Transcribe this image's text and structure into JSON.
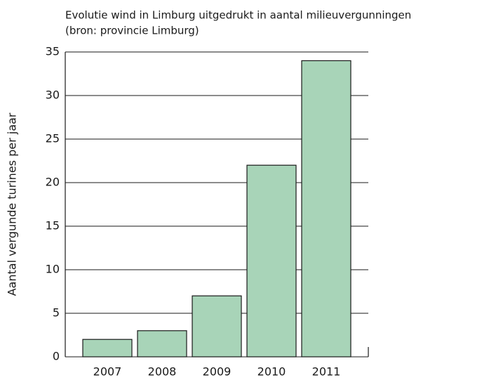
{
  "chart_data": {
    "type": "bar",
    "title": "Evolutie wind in Limburg uitgedrukt in aantal milieuvergunningen",
    "subtitle": "(bron: provincie Limburg)",
    "y_label": "Aantal vergunde turines per jaar",
    "categories": [
      "2007",
      "2008",
      "2009",
      "2010",
      "2011"
    ],
    "values": [
      2,
      3,
      7,
      22,
      34
    ],
    "color": "#a8d4b8",
    "ylim": [
      0,
      35
    ],
    "yticks": [
      0,
      5,
      10,
      15,
      20,
      25,
      30,
      35
    ],
    "grid": true
  }
}
